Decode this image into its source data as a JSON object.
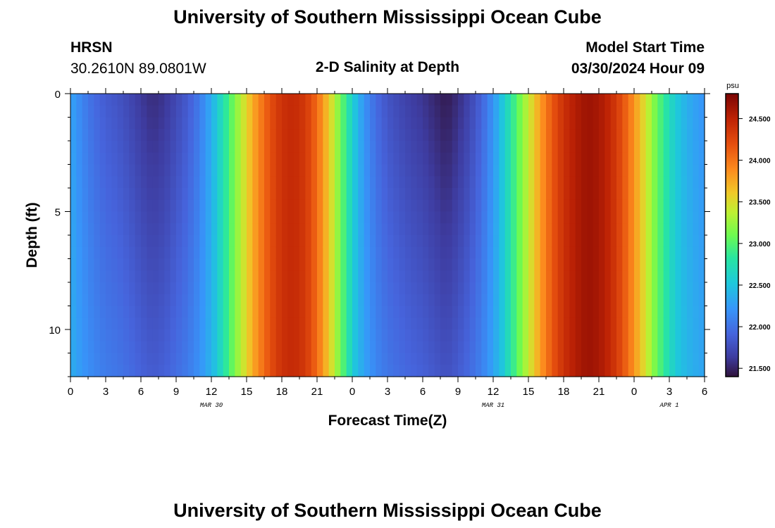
{
  "header": {
    "title": "University of Southern Mississippi Ocean Cube",
    "station_name": "HRSN",
    "coordinates": "30.2610N  89.0801W",
    "plot_title": "2-D Salinity at Depth",
    "model_start_label": "Model Start Time",
    "model_start_value": "03/30/2024 Hour 09"
  },
  "footer": {
    "title": "University of Southern Mississippi Ocean Cube"
  },
  "chart_data": {
    "type": "heatmap",
    "title": "2-D Salinity at Depth",
    "xlabel": "Forecast Time(Z)",
    "ylabel": "Depth (ft)",
    "x_range_hours": [
      0,
      54
    ],
    "y_range_ft": [
      0,
      12
    ],
    "x_tick_hours": [
      0,
      3,
      6,
      9,
      12,
      15,
      18,
      21,
      24,
      27,
      30,
      33,
      36,
      39,
      42,
      45,
      48,
      51,
      54
    ],
    "x_tick_labels": [
      "0",
      "3",
      "6",
      "9",
      "12",
      "15",
      "18",
      "21",
      "0",
      "3",
      "6",
      "9",
      "12",
      "15",
      "18",
      "21",
      "0",
      "3",
      "6"
    ],
    "y_tick_values": [
      0,
      5,
      10
    ],
    "y_tick_labels": [
      "0",
      "5",
      "10"
    ],
    "date_labels": [
      {
        "hour": 12,
        "text": "MAR 30"
      },
      {
        "hour": 36,
        "text": "MAR 31"
      },
      {
        "hour": 51,
        "text": "APR 1"
      }
    ],
    "colorbar": {
      "unit": "psu",
      "min": 21.4,
      "max": 24.8,
      "tick_values": [
        21.5,
        22.0,
        22.5,
        23.0,
        23.5,
        24.0,
        24.5
      ],
      "tick_labels": [
        "21.500",
        "22.000",
        "22.500",
        "23.000",
        "23.500",
        "24.000",
        "24.500"
      ]
    },
    "surface_salinity_by_hour": [
      [
        0,
        22.3
      ],
      [
        1,
        22.1
      ],
      [
        2,
        21.95
      ],
      [
        3,
        21.85
      ],
      [
        4,
        21.8
      ],
      [
        5,
        21.72
      ],
      [
        6,
        21.62
      ],
      [
        7,
        21.55
      ],
      [
        8,
        21.6
      ],
      [
        9,
        21.72
      ],
      [
        10,
        21.85
      ],
      [
        11,
        22.05
      ],
      [
        12,
        22.35
      ],
      [
        13,
        22.75
      ],
      [
        14,
        23.15
      ],
      [
        15,
        23.55
      ],
      [
        16,
        23.9
      ],
      [
        17,
        24.2
      ],
      [
        18,
        24.4
      ],
      [
        19,
        24.45
      ],
      [
        20,
        24.35
      ],
      [
        21,
        24.05
      ],
      [
        22,
        23.6
      ],
      [
        23,
        23.1
      ],
      [
        24,
        22.6
      ],
      [
        25,
        22.2
      ],
      [
        26,
        21.95
      ],
      [
        27,
        21.8
      ],
      [
        28,
        21.72
      ],
      [
        29,
        21.65
      ],
      [
        30,
        21.6
      ],
      [
        31,
        21.52
      ],
      [
        32,
        21.45
      ],
      [
        33,
        21.55
      ],
      [
        34,
        21.7
      ],
      [
        35,
        21.9
      ],
      [
        36,
        22.2
      ],
      [
        37,
        22.6
      ],
      [
        38,
        23.0
      ],
      [
        39,
        23.4
      ],
      [
        40,
        23.8
      ],
      [
        41,
        24.15
      ],
      [
        42,
        24.4
      ],
      [
        43,
        24.55
      ],
      [
        44,
        24.65
      ],
      [
        45,
        24.6
      ],
      [
        46,
        24.45
      ],
      [
        47,
        24.2
      ],
      [
        48,
        23.85
      ],
      [
        49,
        23.45
      ],
      [
        50,
        23.05
      ],
      [
        51,
        22.7
      ],
      [
        52,
        22.45
      ],
      [
        53,
        22.3
      ],
      [
        54,
        22.2
      ]
    ]
  }
}
